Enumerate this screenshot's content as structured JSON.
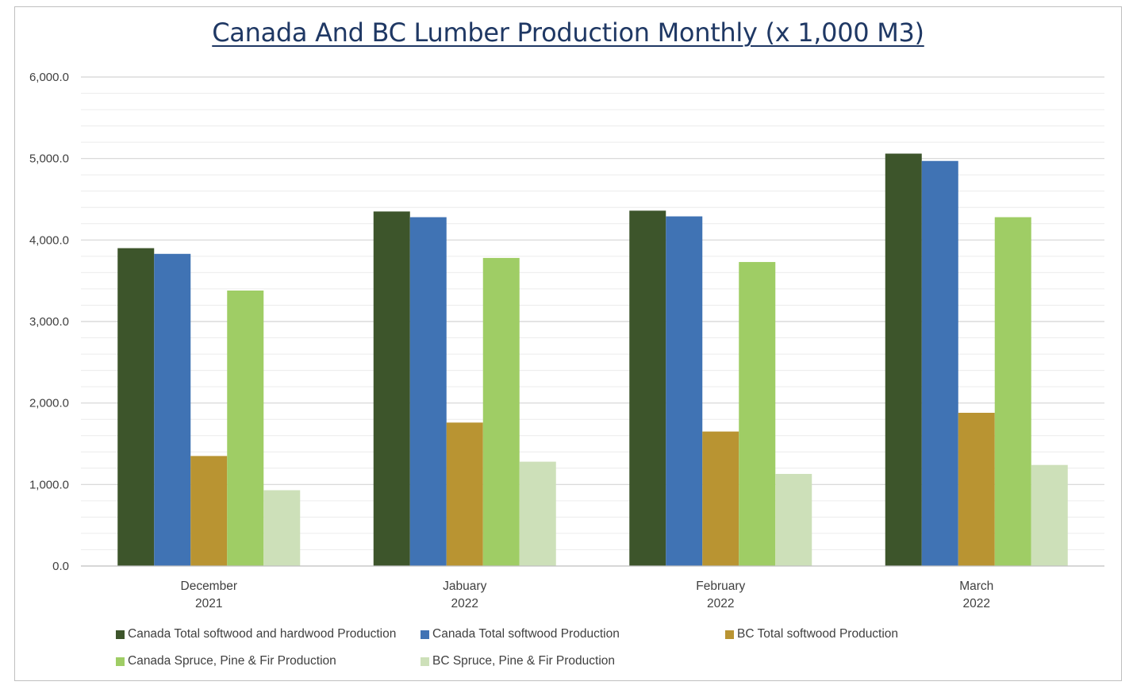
{
  "chart_data": {
    "type": "bar",
    "title": "Canada And BC Lumber Production Monthly (x 1,000 M3)",
    "xlabel": "",
    "ylabel": "",
    "ylim": [
      0,
      6000
    ],
    "yticks": [
      "0.0",
      "1,000.0",
      "2,000.0",
      "3,000.0",
      "4,000.0",
      "5,000.0",
      "6,000.0"
    ],
    "categories": [
      [
        "December",
        "2021"
      ],
      [
        "Jabuary",
        "2022"
      ],
      [
        "February",
        "2022"
      ],
      [
        "March",
        "2022"
      ]
    ],
    "series": [
      {
        "name": "Canada Total softwood and hardwood Production",
        "color": "#3d552b",
        "values": [
          3900,
          4350,
          4360,
          5060
        ]
      },
      {
        "name": "Canada Total softwood Production",
        "color": "#4073b4",
        "values": [
          3830,
          4280,
          4290,
          4970
        ]
      },
      {
        "name": "BC Total softwood Production",
        "color": "#b99432",
        "values": [
          1350,
          1760,
          1650,
          1880
        ]
      },
      {
        "name": "Canada Spruce, Pine & Fir Production",
        "color": "#9fcd65",
        "values": [
          3380,
          3780,
          3730,
          4280
        ]
      },
      {
        "name": "BC Spruce, Pine & Fir Production",
        "color": "#cde0b9",
        "values": [
          930,
          1280,
          1130,
          1240
        ]
      }
    ],
    "grid": true,
    "legend": "bottom"
  }
}
